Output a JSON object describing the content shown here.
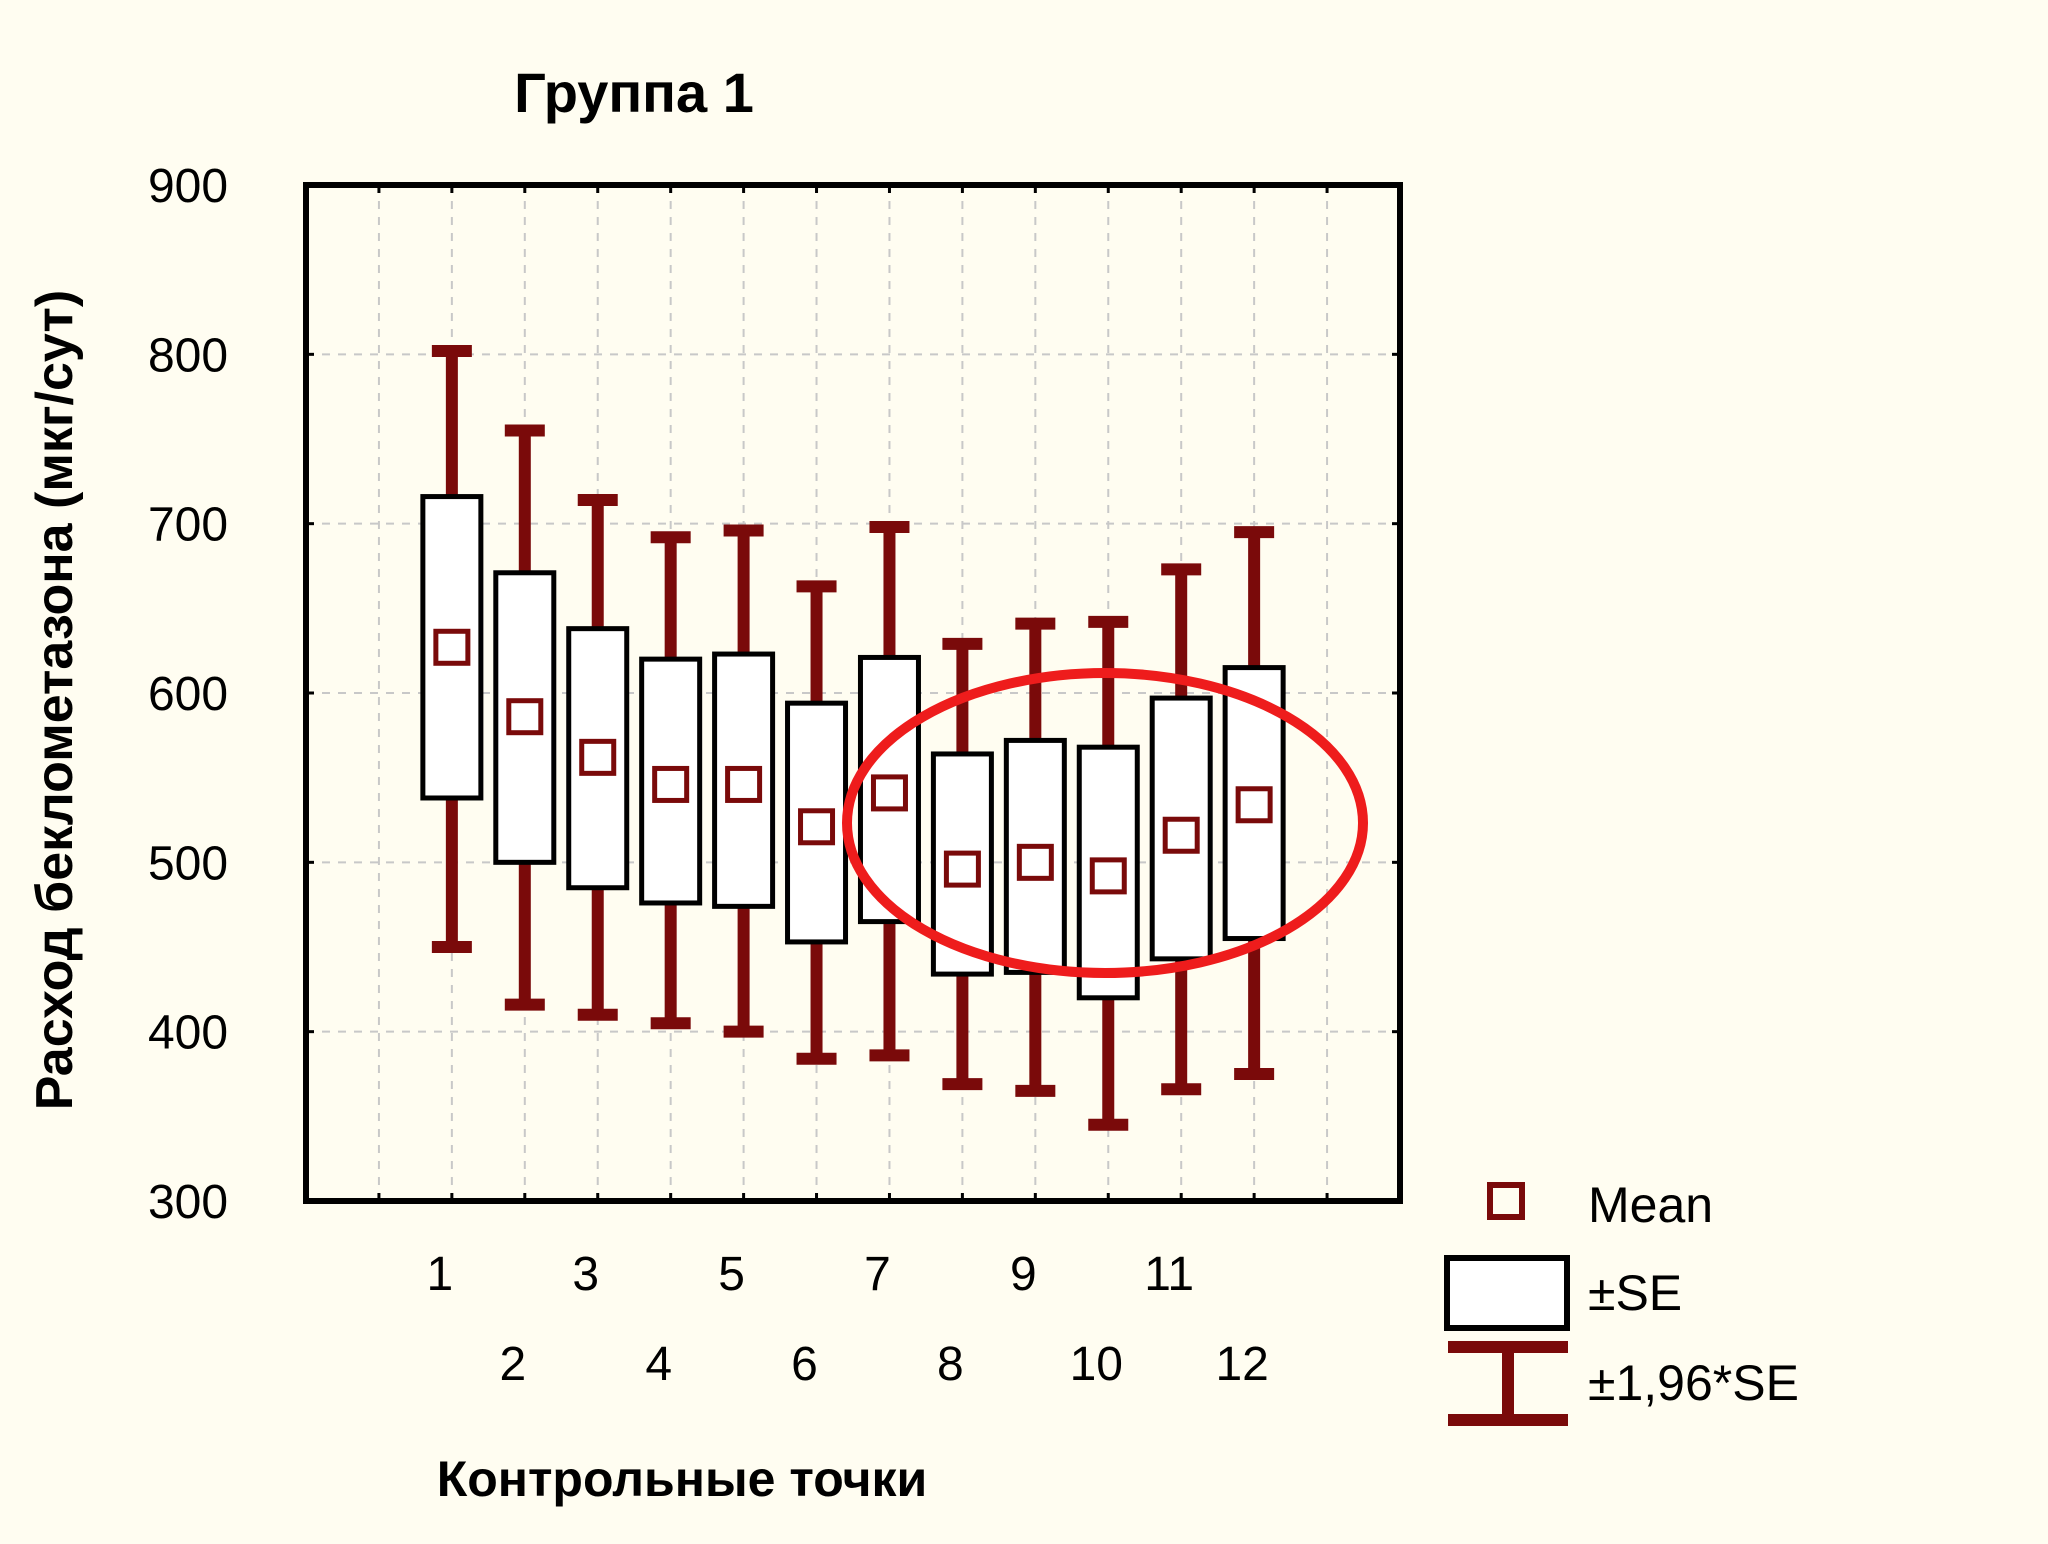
{
  "chart_data": {
    "type": "box",
    "title": "Группа 1",
    "xlabel": "Контрольные точки",
    "ylabel": "Расход беклометазона (мкг/сут)",
    "ylim": [
      300,
      900
    ],
    "yticks": [
      300,
      400,
      500,
      600,
      700,
      800,
      900
    ],
    "categories": [
      "1",
      "2",
      "3",
      "4",
      "5",
      "6",
      "7",
      "8",
      "9",
      "10",
      "11",
      "12"
    ],
    "mean": [
      627,
      586,
      562,
      546,
      546,
      521,
      541,
      496,
      500,
      492,
      516,
      534
    ],
    "se_low": [
      538,
      500,
      485,
      476,
      474,
      453,
      465,
      434,
      435,
      420,
      443,
      455
    ],
    "se_high": [
      716,
      671,
      638,
      620,
      623,
      594,
      621,
      564,
      572,
      568,
      597,
      615
    ],
    "ci_low": [
      450,
      416,
      410,
      405,
      400,
      384,
      386,
      369,
      365,
      345,
      366,
      375
    ],
    "ci_high": [
      802,
      755,
      714,
      692,
      696,
      663,
      698,
      629,
      641,
      642,
      673,
      695
    ],
    "grid": true,
    "legend": {
      "position": "bottom-right",
      "items": [
        {
          "label": "Mean"
        },
        {
          "label": "±SE"
        },
        {
          "label": "±1,96*SE"
        }
      ]
    },
    "annotation": "red-ellipse-around-points-8-12",
    "colors": {
      "whisker": "#7a0a0a",
      "mean_marker": "#7a0a0a",
      "box": "#000000",
      "highlight": "#ee1c1c",
      "grid": "#c8c8c8"
    }
  }
}
